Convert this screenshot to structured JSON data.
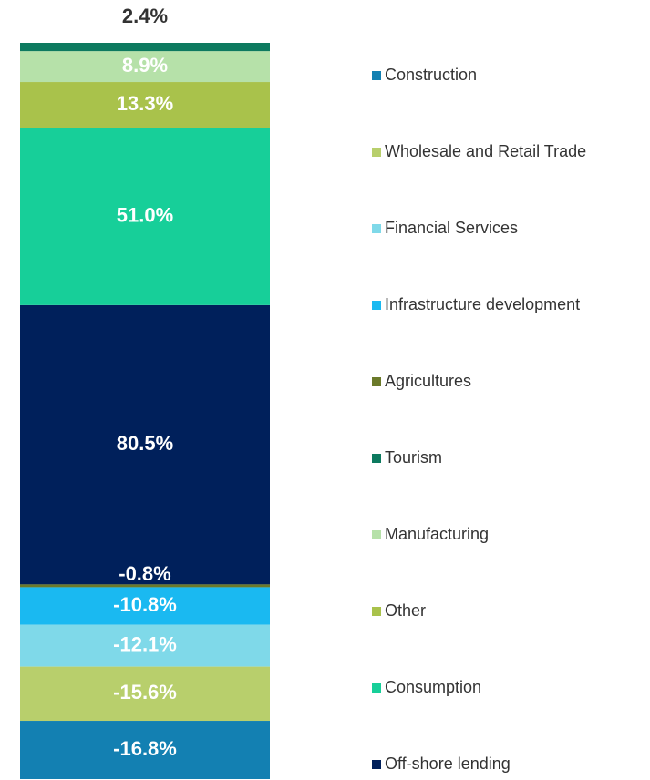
{
  "chart_data": {
    "type": "stacked-bar",
    "categories": [
      null
    ],
    "series": [
      {
        "name": "Construction",
        "color": "#1380b2",
        "values": [
          -16.8
        ],
        "value_labels": [
          "-16.8%"
        ]
      },
      {
        "name": "Wholesale and Retail Trade",
        "color": "#b8cf6c",
        "values": [
          -15.6
        ],
        "value_labels": [
          "-15.6%"
        ]
      },
      {
        "name": "Financial Services",
        "color": "#7fd9e9",
        "values": [
          -12.1
        ],
        "value_labels": [
          "-12.1%"
        ]
      },
      {
        "name": "Infrastructure development",
        "color": "#1ab9f1",
        "values": [
          -10.8
        ],
        "value_labels": [
          "-10.8%"
        ]
      },
      {
        "name": "Agricultures",
        "color": "#6b7a2a",
        "values": [
          -0.8
        ],
        "value_labels": [
          "-0.8%"
        ]
      },
      {
        "name": "Tourism",
        "color": "#0d7a5f",
        "values": [
          2.4
        ],
        "value_labels": [
          "2.4%"
        ]
      },
      {
        "name": "Manufacturing",
        "color": "#b6e1a9",
        "values": [
          8.9
        ],
        "value_labels": [
          "8.9%"
        ]
      },
      {
        "name": "Other",
        "color": "#a9c24b",
        "values": [
          13.3
        ],
        "value_labels": [
          "13.3%"
        ]
      },
      {
        "name": "Consumption",
        "color": "#17cf99",
        "values": [
          51.0
        ],
        "value_labels": [
          "51.0%"
        ]
      },
      {
        "name": "Off-shore lending",
        "color": "#00205b",
        "values": [
          80.5
        ],
        "value_labels": [
          "80.5%"
        ]
      }
    ]
  }
}
